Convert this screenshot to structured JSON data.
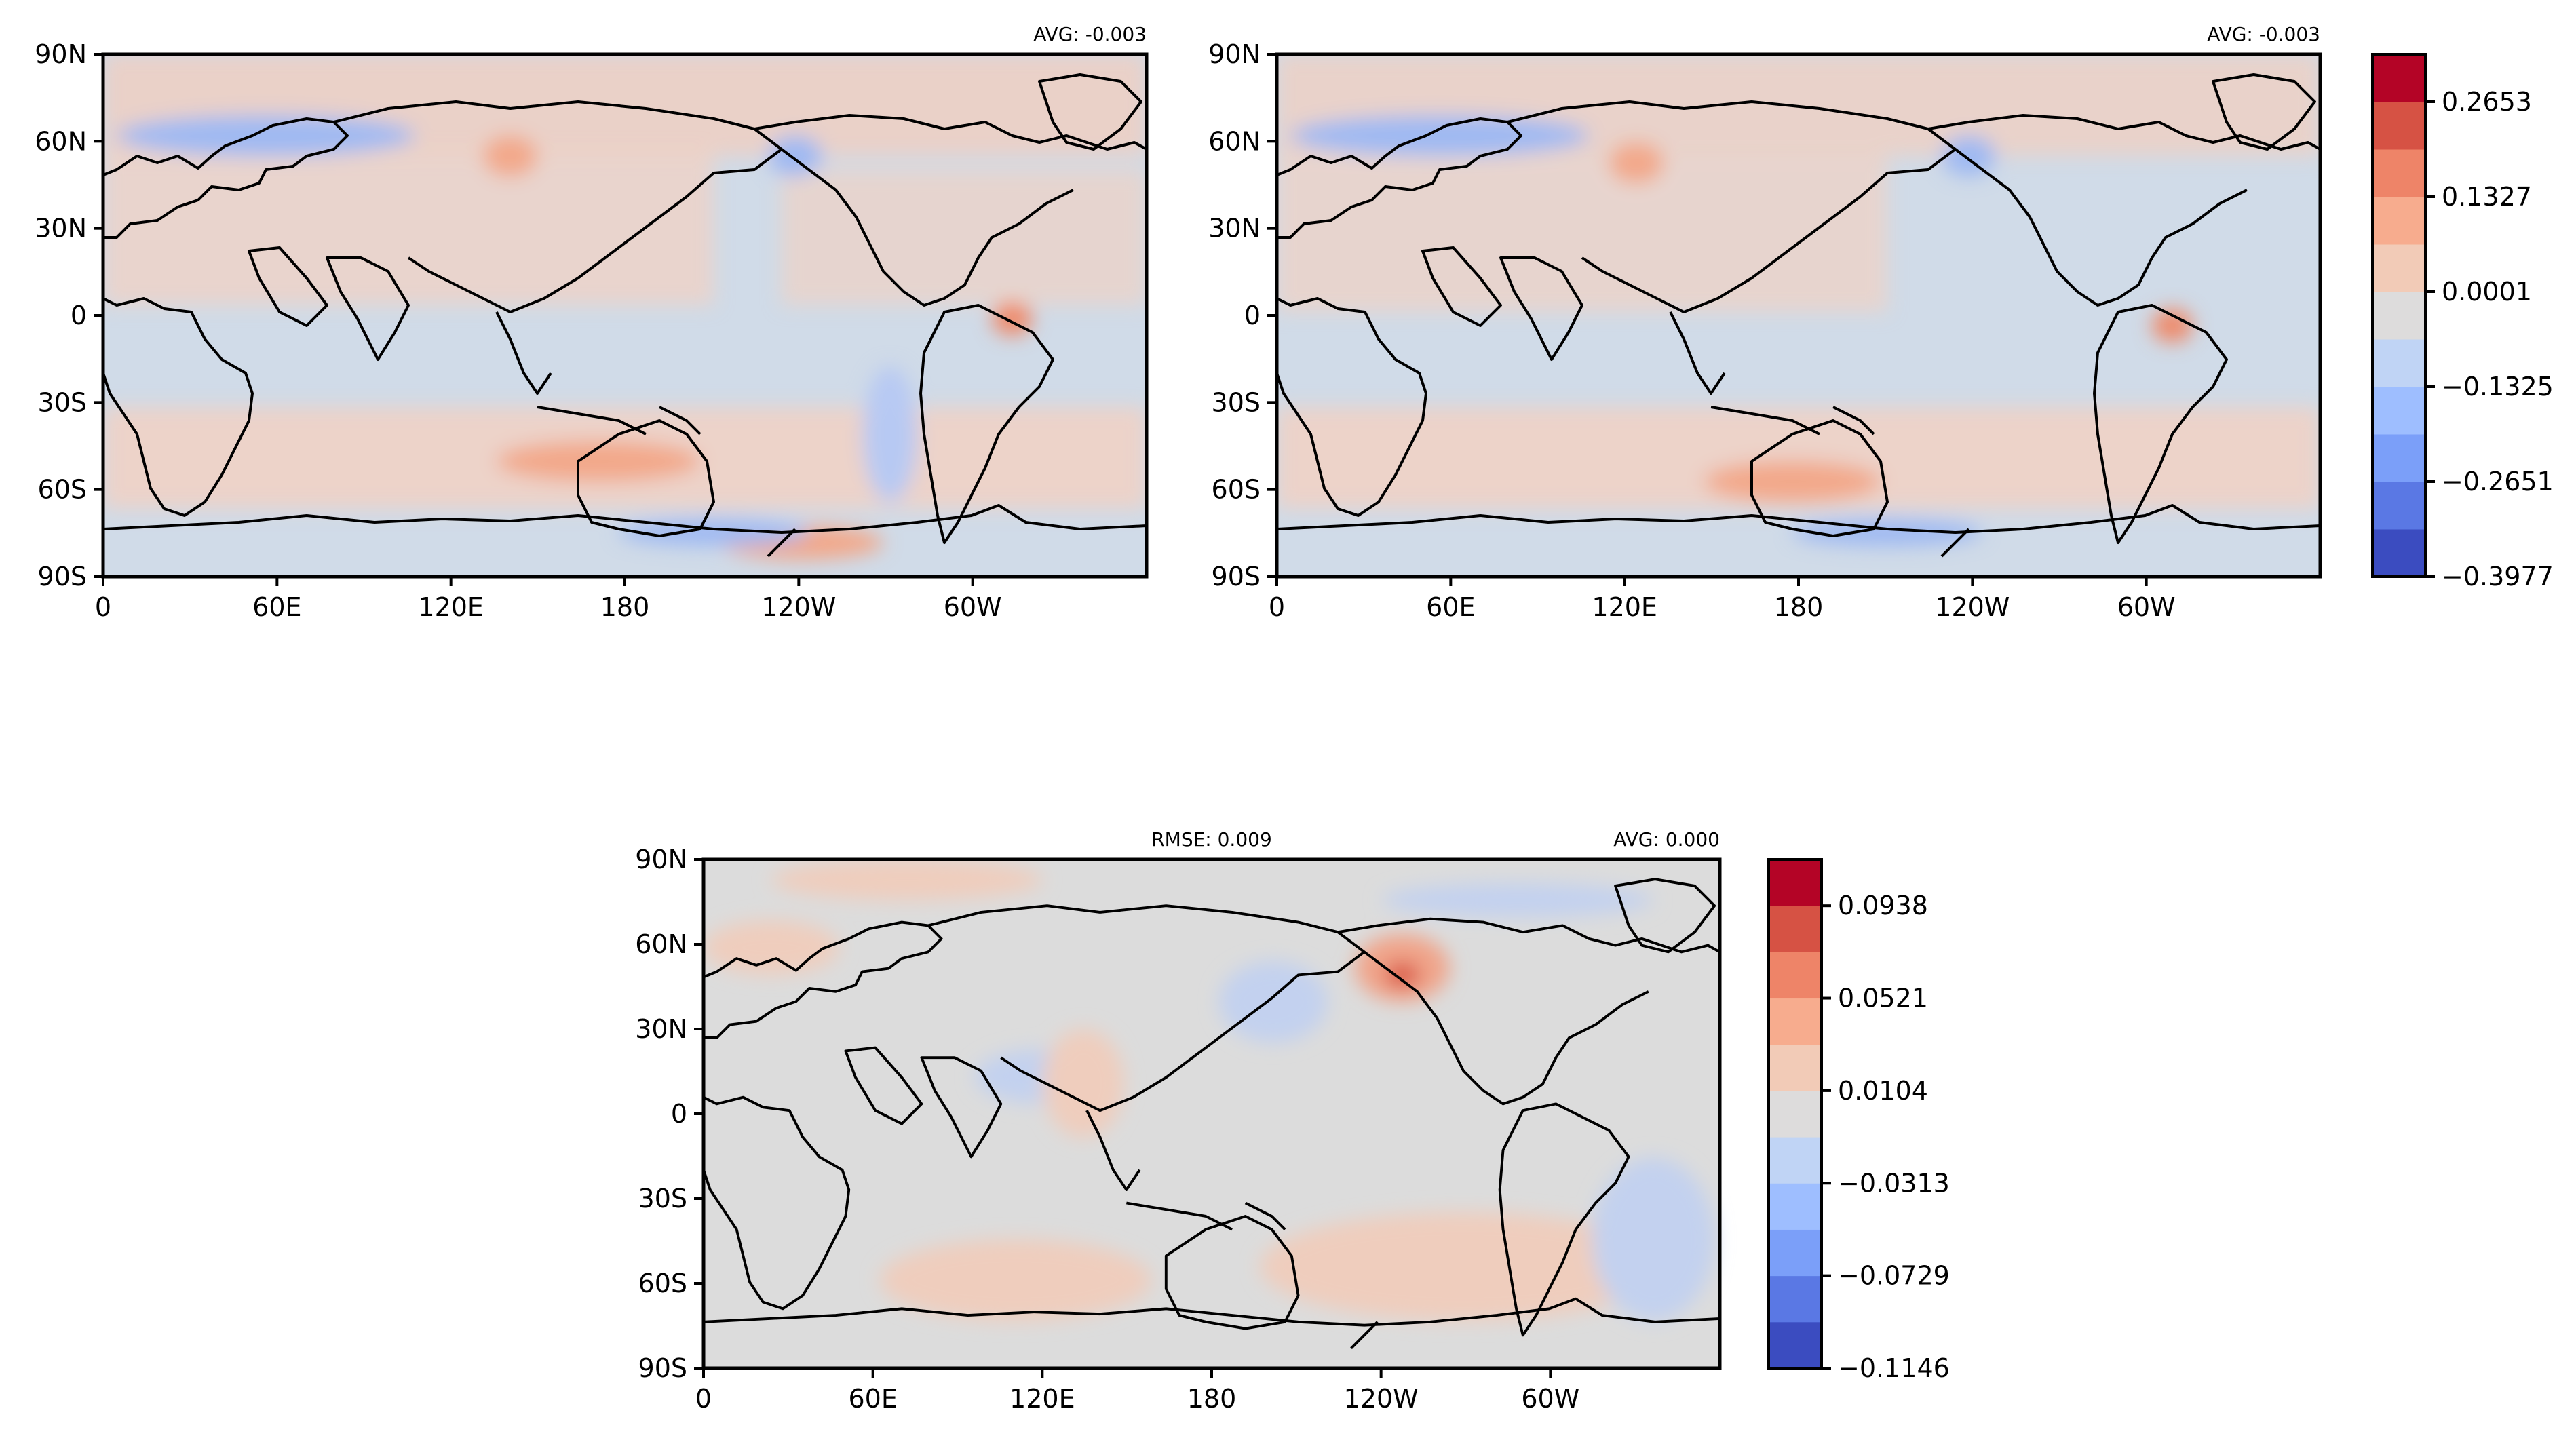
{
  "colors": {
    "frame": "#000000",
    "neutral_gray": "#dcdcdc",
    "coast": "#000000"
  },
  "shared_axes": {
    "x_ticks": [
      "0",
      "60E",
      "120E",
      "180",
      "120W",
      "60W"
    ],
    "y_ticks": [
      "90N",
      "60N",
      "30N",
      "0",
      "30S",
      "60S",
      "90S"
    ]
  },
  "panels": [
    {
      "id": "top-left",
      "left_label": "",
      "right_label": "AVG: -0.003"
    },
    {
      "id": "top-right",
      "left_label": "",
      "right_label": "AVG: -0.003"
    },
    {
      "id": "bottom",
      "left_label": "RMSE: 0.009",
      "right_label": "AVG: 0.000"
    }
  ],
  "colorbars": [
    {
      "id": "top-colorbar",
      "tick_labels": [
        "0.2653",
        "0.1327",
        "0.0001",
        "−0.1325",
        "−0.2651",
        "−0.3977"
      ],
      "colors": [
        "#3b4cc0",
        "#5a78e4",
        "#7b9ff9",
        "#9ebeff",
        "#c0d4f5",
        "#dddcdc",
        "#f2cbb7",
        "#f7ac8e",
        "#ee8468",
        "#d65244",
        "#b40426"
      ]
    },
    {
      "id": "bottom-colorbar",
      "tick_labels": [
        "0.0938",
        "0.0521",
        "0.0104",
        "−0.0313",
        "−0.0729",
        "−0.1146"
      ],
      "colors": [
        "#3b4cc0",
        "#5a78e4",
        "#7b9ff9",
        "#9ebeff",
        "#c0d4f5",
        "#dddcdc",
        "#f2cbb7",
        "#f7ac8e",
        "#ee8468",
        "#d65244",
        "#b40426"
      ]
    }
  ]
}
